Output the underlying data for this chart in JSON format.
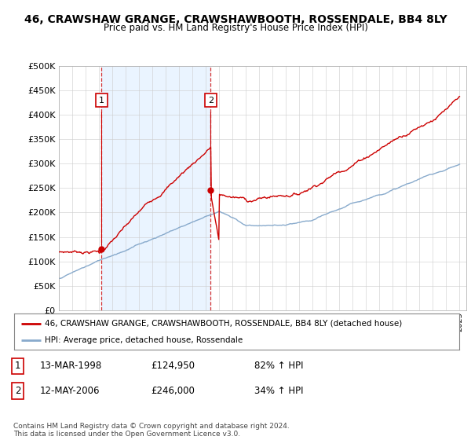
{
  "title1": "46, CRAWSHAW GRANGE, CRAWSHAWBOOTH, ROSSENDALE, BB4 8LY",
  "title2": "Price paid vs. HM Land Registry's House Price Index (HPI)",
  "ytick_values": [
    0,
    50000,
    100000,
    150000,
    200000,
    250000,
    300000,
    350000,
    400000,
    450000,
    500000
  ],
  "xlim_start": 1995.0,
  "xlim_end": 2025.5,
  "ylim_min": 0,
  "ylim_max": 500000,
  "line1_color": "#cc0000",
  "line2_color": "#88aacc",
  "shade_color": "#ddeeff",
  "vline_color": "#cc0000",
  "marker1_date": 1998.2,
  "marker1_value": 124950,
  "marker2_date": 2006.37,
  "marker2_value": 246000,
  "legend_entry1": "46, CRAWSHAW GRANGE, CRAWSHAWBOOTH, ROSSENDALE, BB4 8LY (detached house)",
  "legend_entry2": "HPI: Average price, detached house, Rossendale",
  "table_row1": [
    "1",
    "13-MAR-1998",
    "£124,950",
    "82% ↑ HPI"
  ],
  "table_row2": [
    "2",
    "12-MAY-2006",
    "£246,000",
    "34% ↑ HPI"
  ],
  "footnote": "Contains HM Land Registry data © Crown copyright and database right 2024.\nThis data is licensed under the Open Government Licence v3.0.",
  "background_color": "#ffffff",
  "grid_color": "#cccccc"
}
